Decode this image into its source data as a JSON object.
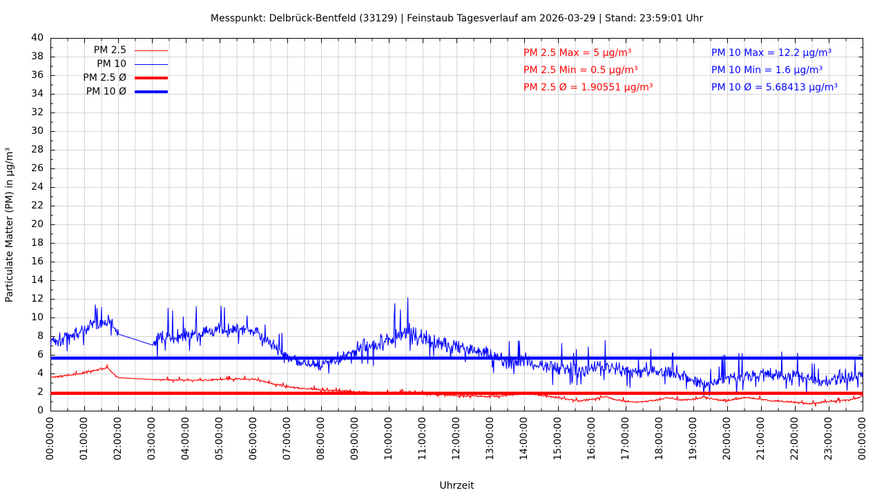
{
  "title": "Messpunkt: Delbrück-Bentfeld (33129) | Feinstaub Tagesverlauf am 2026-03-29 | Stand: 23:59:01 Uhr",
  "colors": {
    "pm25": "#ff0000",
    "pm10": "#0000ff",
    "grid": "#d4d4d4",
    "frame": "#000000"
  },
  "legend": {
    "items": [
      {
        "label": "PM 2.5",
        "color": "#ff0000",
        "thickness": 1.5
      },
      {
        "label": "PM 10",
        "color": "#0000ff",
        "thickness": 1.5
      },
      {
        "label": "PM 2.5 Ø",
        "color": "#ff0000",
        "thickness": 4.5
      },
      {
        "label": "PM 10 Ø",
        "color": "#0000ff",
        "thickness": 4.5
      }
    ]
  },
  "stats": {
    "pm25": {
      "color": "#ff0000",
      "lines": [
        "PM 2.5 Max = 5 µg/m³",
        "PM 2.5 Min = 0.5 µg/m³",
        "PM 2.5 Ø = 1.90551 µg/m³"
      ]
    },
    "pm10": {
      "color": "#0000ff",
      "lines": [
        "PM 10 Max = 12.2 µg/m³",
        "PM 10 Min = 1.6 µg/m³",
        "PM 10 Ø = 5.68413 µg/m³"
      ]
    }
  },
  "axes": {
    "y": {
      "label": "Particulate Matter (PM) in µg/m³",
      "min": 0,
      "max": 40,
      "step": 2,
      "ticks": [
        "0",
        "2",
        "4",
        "6",
        "8",
        "10",
        "12",
        "14",
        "16",
        "18",
        "20",
        "22",
        "24",
        "26",
        "28",
        "30",
        "32",
        "34",
        "36",
        "38",
        "40"
      ]
    },
    "x": {
      "label": "Uhrzeit",
      "ticks": [
        "00:00:00",
        "01:00:00",
        "02:00:00",
        "03:00:00",
        "04:00:00",
        "05:00:00",
        "06:00:00",
        "07:00:00",
        "08:00:00",
        "09:00:00",
        "10:00:00",
        "11:00:00",
        "12:00:00",
        "13:00:00",
        "14:00:00",
        "15:00:00",
        "16:00:00",
        "17:00:00",
        "18:00:00",
        "19:00:00",
        "20:00:00",
        "21:00:00",
        "22:00:00",
        "23:00:00",
        "00:00:00"
      ]
    }
  },
  "chart_data": {
    "type": "line",
    "title": "Messpunkt: Delbrück-Bentfeld (33129) | Feinstaub Tagesverlauf am 2026-03-29 | Stand: 23:59:01 Uhr",
    "xlabel": "Uhrzeit",
    "ylabel": "Particulate Matter (PM) in µg/m³",
    "ylim": [
      0,
      40
    ],
    "xlim_hours": [
      0,
      24
    ],
    "grid": true,
    "x_minor_tick_minutes": 30,
    "sample_interval_min": 1,
    "data_gap": {
      "start_min": 120,
      "end_min": 181
    },
    "series": [
      {
        "name": "PM 2.5",
        "color": "#ff0000",
        "width": 1.1,
        "spiky": true,
        "max": 5,
        "max_at_min": 100,
        "min": 0.5,
        "min_at_min": 1356,
        "avg": 1.90551,
        "anchors": [
          [
            0,
            3.65
          ],
          [
            0.3,
            3.75
          ],
          [
            0.6,
            3.85
          ],
          [
            0.9,
            4.05
          ],
          [
            1.2,
            4.3
          ],
          [
            1.5,
            4.55
          ],
          [
            1.7,
            4.55
          ],
          [
            1.85,
            4.0
          ],
          [
            2,
            3.55
          ],
          [
            3.02,
            3.4
          ],
          [
            3.5,
            3.35
          ],
          [
            4,
            3.3
          ],
          [
            4.5,
            3.3
          ],
          [
            5,
            3.4
          ],
          [
            5.5,
            3.45
          ],
          [
            6,
            3.4
          ],
          [
            6.3,
            3.15
          ],
          [
            6.6,
            2.9
          ],
          [
            7,
            2.6
          ],
          [
            7.4,
            2.45
          ],
          [
            7.8,
            2.35
          ],
          [
            8.2,
            2.2
          ],
          [
            8.6,
            2.15
          ],
          [
            9,
            2.05
          ],
          [
            9.5,
            1.95
          ],
          [
            10,
            2.0
          ],
          [
            10.5,
            2.05
          ],
          [
            11,
            1.95
          ],
          [
            11.4,
            1.8
          ],
          [
            11.8,
            1.7
          ],
          [
            12.2,
            1.65
          ],
          [
            12.6,
            1.6
          ],
          [
            13,
            1.55
          ],
          [
            13.5,
            1.7
          ],
          [
            14,
            1.9
          ],
          [
            14.4,
            1.75
          ],
          [
            14.8,
            1.55
          ],
          [
            15.2,
            1.3
          ],
          [
            15.6,
            1.1
          ],
          [
            16,
            1.25
          ],
          [
            16.35,
            1.55
          ],
          [
            16.7,
            1.2
          ],
          [
            17.1,
            1.0
          ],
          [
            17.5,
            1.0
          ],
          [
            18,
            1.2
          ],
          [
            18.2,
            1.45
          ],
          [
            18.6,
            1.2
          ],
          [
            19,
            1.25
          ],
          [
            19.3,
            1.5
          ],
          [
            19.7,
            1.2
          ],
          [
            20.1,
            1.15
          ],
          [
            20.5,
            1.45
          ],
          [
            20.9,
            1.3
          ],
          [
            21.3,
            1.1
          ],
          [
            21.7,
            1.05
          ],
          [
            22.1,
            0.9
          ],
          [
            22.5,
            0.8
          ],
          [
            22.9,
            1.0
          ],
          [
            23.3,
            1.1
          ],
          [
            23.6,
            1.2
          ],
          [
            23.9,
            1.45
          ],
          [
            24,
            1.7
          ]
        ],
        "noise_amp": [
          [
            0,
            0.14
          ],
          [
            1,
            0.16
          ],
          [
            2,
            0.12
          ],
          [
            3.1,
            0.12
          ],
          [
            6,
            0.12
          ],
          [
            8,
            0.13
          ],
          [
            10,
            0.13
          ],
          [
            12,
            0.12
          ],
          [
            14,
            0.13
          ],
          [
            16,
            0.13
          ],
          [
            18,
            0.12
          ],
          [
            20,
            0.12
          ],
          [
            22,
            0.11
          ],
          [
            24,
            0.12
          ]
        ]
      },
      {
        "name": "PM 10",
        "color": "#0000ff",
        "width": 1.1,
        "spiky": true,
        "max": 12.2,
        "max_at_min": 633,
        "min": 1.6,
        "min_at_min": 1158,
        "avg": 5.68413,
        "anchors": [
          [
            0,
            7.6
          ],
          [
            0.25,
            7.7
          ],
          [
            0.5,
            7.9
          ],
          [
            0.75,
            8.3
          ],
          [
            1,
            8.8
          ],
          [
            1.25,
            9.2
          ],
          [
            1.5,
            9.4
          ],
          [
            1.7,
            9.7
          ],
          [
            1.85,
            9.2
          ],
          [
            2,
            8.5
          ],
          [
            3.02,
            7.4
          ],
          [
            3.2,
            7.7
          ],
          [
            3.5,
            8.1
          ],
          [
            3.8,
            8.0
          ],
          [
            4.1,
            8.3
          ],
          [
            4.4,
            8.2
          ],
          [
            4.7,
            8.5
          ],
          [
            5,
            8.7
          ],
          [
            5.3,
            8.6
          ],
          [
            5.6,
            8.8
          ],
          [
            5.9,
            8.7
          ],
          [
            6.2,
            8.2
          ],
          [
            6.5,
            7.3
          ],
          [
            6.8,
            6.3
          ],
          [
            7.1,
            5.6
          ],
          [
            7.4,
            5.2
          ],
          [
            7.7,
            4.9
          ],
          [
            8,
            5.1
          ],
          [
            8.4,
            5.5
          ],
          [
            8.8,
            6.3
          ],
          [
            9.1,
            6.8
          ],
          [
            9.4,
            7.0
          ],
          [
            9.7,
            7.2
          ],
          [
            10,
            7.5
          ],
          [
            10.3,
            8.0
          ],
          [
            10.55,
            8.7
          ],
          [
            10.8,
            8.1
          ],
          [
            11.1,
            7.7
          ],
          [
            11.4,
            7.3
          ],
          [
            11.7,
            7.1
          ],
          [
            12,
            7.0
          ],
          [
            12.4,
            6.6
          ],
          [
            12.8,
            6.2
          ],
          [
            13.2,
            5.7
          ],
          [
            13.5,
            5.2
          ],
          [
            13.8,
            5.4
          ],
          [
            14.1,
            5.5
          ],
          [
            14.5,
            5.0
          ],
          [
            14.9,
            4.7
          ],
          [
            15.3,
            4.5
          ],
          [
            15.7,
            4.4
          ],
          [
            16.1,
            4.6
          ],
          [
            16.5,
            4.7
          ],
          [
            16.9,
            4.4
          ],
          [
            17.3,
            4.2
          ],
          [
            17.7,
            4.4
          ],
          [
            18.1,
            4.3
          ],
          [
            18.5,
            4.0
          ],
          [
            18.9,
            3.6
          ],
          [
            19.2,
            2.9
          ],
          [
            19.4,
            2.8
          ],
          [
            19.7,
            3.3
          ],
          [
            20,
            3.7
          ],
          [
            20.4,
            3.6
          ],
          [
            20.8,
            3.8
          ],
          [
            21.2,
            4.0
          ],
          [
            21.6,
            3.9
          ],
          [
            22,
            3.7
          ],
          [
            22.4,
            3.5
          ],
          [
            22.8,
            3.2
          ],
          [
            23.1,
            3.3
          ],
          [
            23.4,
            3.6
          ],
          [
            23.7,
            3.7
          ],
          [
            24,
            4.1
          ]
        ],
        "noise_amp": [
          [
            0,
            0.85
          ],
          [
            1,
            1.0
          ],
          [
            1.9,
            0.8
          ],
          [
            3.1,
            1.0
          ],
          [
            5,
            0.95
          ],
          [
            6.3,
            0.8
          ],
          [
            7.2,
            0.65
          ],
          [
            8.3,
            0.75
          ],
          [
            9,
            1.15
          ],
          [
            10.5,
            1.35
          ],
          [
            11.5,
            1.1
          ],
          [
            12.5,
            0.95
          ],
          [
            13.4,
            0.85
          ],
          [
            14.2,
            0.95
          ],
          [
            15.2,
            0.85
          ],
          [
            16.2,
            0.95
          ],
          [
            17.2,
            0.85
          ],
          [
            18.2,
            0.9
          ],
          [
            19.3,
            0.75
          ],
          [
            20,
            0.85
          ],
          [
            21.5,
            0.85
          ],
          [
            22.8,
            0.8
          ],
          [
            24,
            0.7
          ]
        ]
      },
      {
        "name": "PM 2.5 Ø",
        "color": "#ff0000",
        "width": 4.5,
        "constant": 1.90551
      },
      {
        "name": "PM 10 Ø",
        "color": "#0000ff",
        "width": 4.5,
        "constant": 5.68413
      }
    ]
  }
}
